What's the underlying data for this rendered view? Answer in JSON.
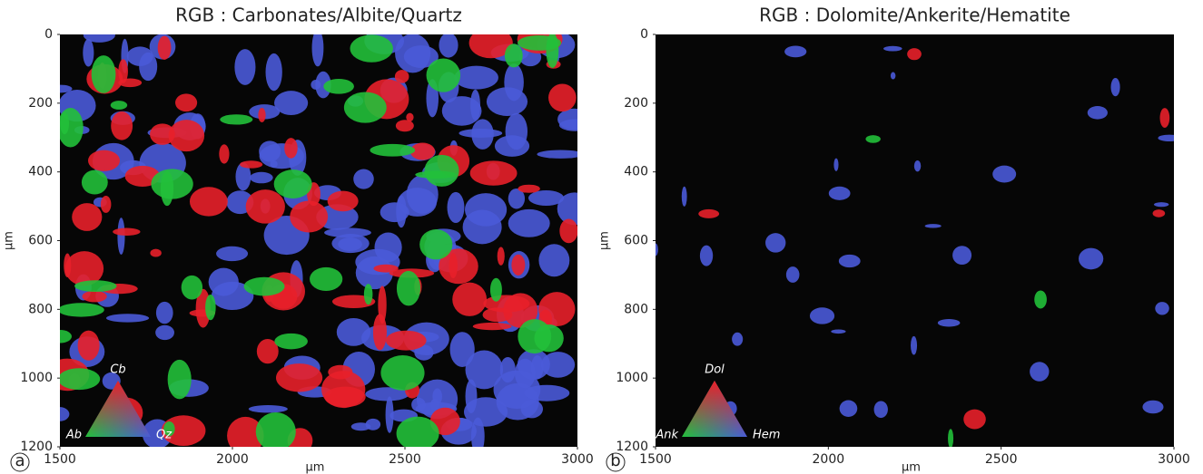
{
  "chart_data": [
    {
      "type": "image",
      "title": "RGB : Carbonates/Albite/Quartz",
      "panel_label": "a",
      "xlabel": "µm",
      "ylabel": "µm",
      "xlim": [
        1500,
        3000
      ],
      "xticks": [
        1500,
        2000,
        2500,
        3000
      ],
      "ylim": [
        0,
        1200
      ],
      "y_inverted": true,
      "yticks": [
        0,
        200,
        400,
        600,
        800,
        1000,
        1200
      ],
      "legend": {
        "labels": [
          "Cb",
          "Ab",
          "Qz"
        ],
        "colors": [
          "#e8202a",
          "#22c03a",
          "#4a5ad8"
        ]
      }
    },
    {
      "type": "image",
      "title": "RGB : Dolomite/Ankerite/Hematite",
      "panel_label": "b",
      "xlabel": "µm",
      "ylabel": "µm",
      "xlim": [
        1500,
        3000
      ],
      "xticks": [
        1500,
        2000,
        2500,
        3000
      ],
      "ylim": [
        0,
        1200
      ],
      "y_inverted": true,
      "yticks": [
        0,
        200,
        400,
        600,
        800,
        1000,
        1200
      ],
      "legend": {
        "labels": [
          "Dol",
          "Ank",
          "Hem"
        ],
        "colors": [
          "#e8202a",
          "#22c03a",
          "#4a5ad8"
        ]
      }
    }
  ]
}
